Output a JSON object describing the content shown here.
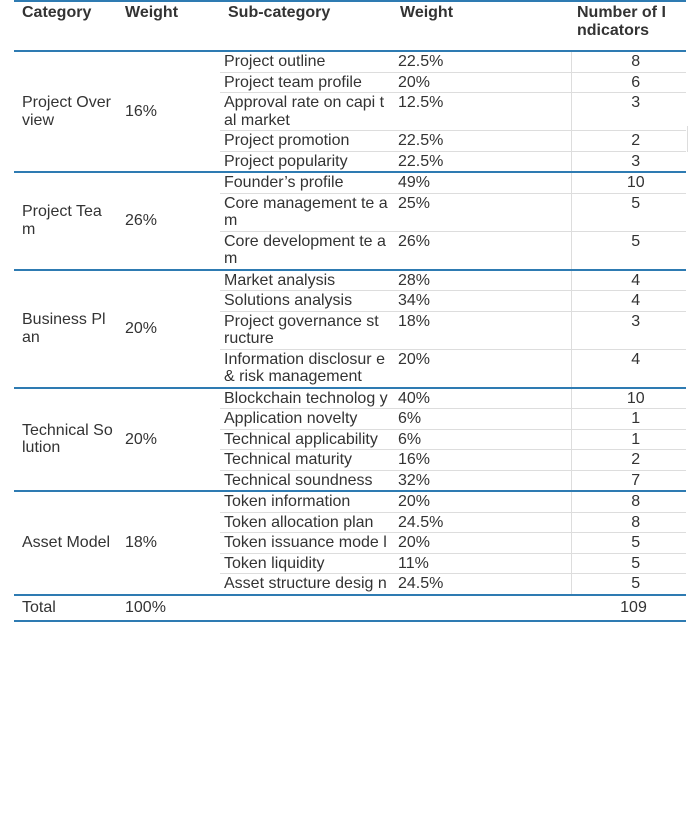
{
  "header": {
    "category": "Category",
    "weight": "Weight",
    "subcategory": "Sub-category",
    "sub_weight": "Weight",
    "num_indicators": "Number of I ndicators"
  },
  "groups": [
    {
      "category": "Project Over view",
      "weight": "16%",
      "rows": [
        {
          "name": "Project outline",
          "weight": "22.5%",
          "count": "8"
        },
        {
          "name": "Project team profile",
          "weight": "20%",
          "count": "6"
        },
        {
          "name": "Approval rate on capi tal market",
          "weight": "12.5%",
          "count": "3"
        },
        {
          "name": "Project promotion",
          "weight": "22.5%",
          "count": "2"
        },
        {
          "name": "Project popularity",
          "weight": "22.5%",
          "count": "3"
        }
      ]
    },
    {
      "category": "Project Tea m",
      "weight": "26%",
      "rows": [
        {
          "name": "Founder’s profile",
          "weight": "49%",
          "count": "10"
        },
        {
          "name": "Core management te am",
          "weight": "25%",
          "count": "5"
        },
        {
          "name": "Core development te am",
          "weight": "26%",
          "count": "5"
        }
      ]
    },
    {
      "category": "Business Pl an",
      "weight": "20%",
      "rows": [
        {
          "name": "Market analysis",
          "weight": "28%",
          "count": "4"
        },
        {
          "name": "Solutions analysis",
          "weight": "34%",
          "count": "4"
        },
        {
          "name": "Project governance st ructure",
          "weight": "18%",
          "count": "3"
        },
        {
          "name": "Information disclosur e & risk management",
          "weight": "20%",
          "count": "4"
        }
      ]
    },
    {
      "category": "Technical So lution",
      "weight": "20%",
      "rows": [
        {
          "name": "Blockchain technolog y",
          "weight": "40%",
          "count": "10"
        },
        {
          "name": "Application novelty",
          "weight": "6%",
          "count": "1"
        },
        {
          "name": "Technical applicability",
          "weight": "6%",
          "count": "1"
        },
        {
          "name": "Technical maturity",
          "weight": "16%",
          "count": "2"
        },
        {
          "name": "Technical soundness",
          "weight": "32%",
          "count": "7"
        }
      ]
    },
    {
      "category": "Asset Model",
      "weight": "18%",
      "rows": [
        {
          "name": "Token information",
          "weight": "20%",
          "count": "8"
        },
        {
          "name": "Token allocation plan",
          "weight": "24.5%",
          "count": "8"
        },
        {
          "name": "Token issuance mode l",
          "weight": "20%",
          "count": "5"
        },
        {
          "name": "Token liquidity",
          "weight": "11%",
          "count": "5"
        },
        {
          "name": "Asset structure desig n",
          "weight": "24.5%",
          "count": "5"
        }
      ]
    }
  ],
  "total": {
    "label": "Total",
    "weight": "100%",
    "count": "109"
  },
  "colors": {
    "rule": "#2e7bb2",
    "text": "#333333",
    "thin_border": "#dddddd"
  }
}
